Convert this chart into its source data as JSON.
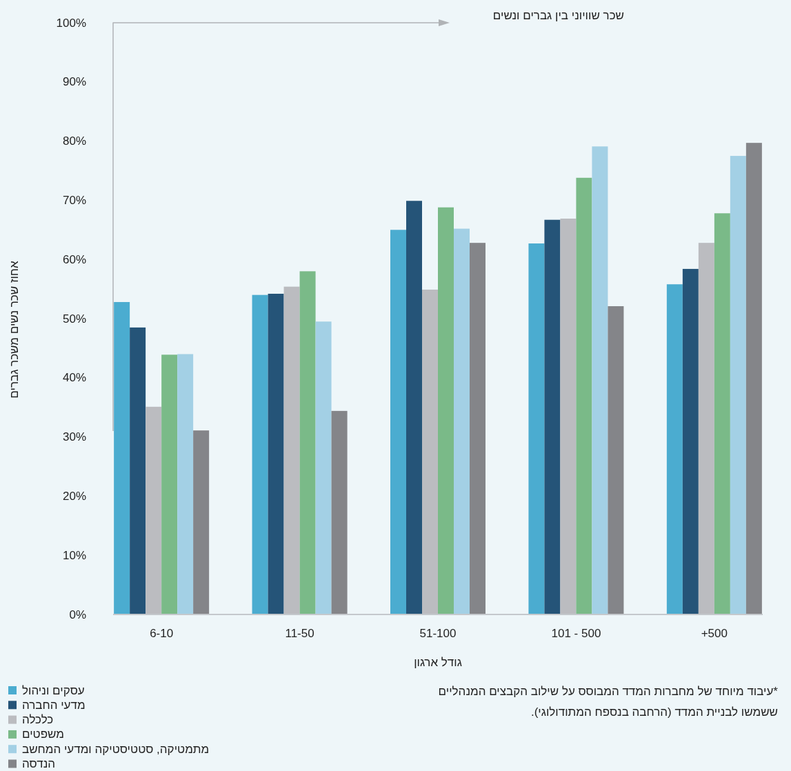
{
  "chart_data": {
    "type": "bar",
    "xlabel": "גודל ארגון",
    "ylabel": "אחוז שכר נשים משכר גברים",
    "categories": [
      "6-10",
      "11-50",
      "51-100",
      "101 - 500",
      "+500"
    ],
    "series": [
      {
        "name": "עסקים וניהול",
        "color": "#4bacd0",
        "values": [
          52.8,
          54.0,
          65.0,
          62.7,
          55.8
        ]
      },
      {
        "name": "מדעי החברה",
        "color": "#255478",
        "values": [
          48.5,
          54.2,
          69.9,
          66.7,
          58.4
        ]
      },
      {
        "name": "כלכלה",
        "color": "#bbbcc0",
        "values": [
          35.1,
          55.4,
          54.9,
          66.9,
          62.8
        ]
      },
      {
        "name": "משפטים",
        "color": "#7aba88",
        "values": [
          43.9,
          58.0,
          68.8,
          73.8,
          67.8
        ]
      },
      {
        "name": "מתמטיקה, סטטיסטיקה ומדעי המחשב",
        "color": "#a3d0e5",
        "values": [
          44.0,
          49.5,
          65.2,
          79.1,
          77.5
        ]
      },
      {
        "name": "הנדסה",
        "color": "#848589",
        "values": [
          31.1,
          34.4,
          62.8,
          52.1,
          79.7
        ]
      }
    ],
    "ylim": [
      0,
      100
    ],
    "yticks": [
      {
        "value": 0,
        "label": "0%"
      },
      {
        "value": 10,
        "label": "10%"
      },
      {
        "value": 20,
        "label": "20%"
      },
      {
        "value": 30,
        "label": "30%"
      },
      {
        "value": 40,
        "label": "40%"
      },
      {
        "value": 50,
        "label": "50%"
      },
      {
        "value": 60,
        "label": "60%"
      },
      {
        "value": 70,
        "label": "70%"
      },
      {
        "value": 80,
        "label": "80%"
      },
      {
        "value": 90,
        "label": "90%"
      },
      {
        "value": 100,
        "label": "100%"
      }
    ],
    "legend": "bottom left",
    "annotations": [
      "שכר שוויוני בין גברים ונשים",
      "*עיבוד מיוחד של מחברות המדד המבוסס על שילוב הקבצים המנהליים",
      "ששמשו לבניית המדד (הרחבה בנספח המתודולוגי)."
    ]
  }
}
